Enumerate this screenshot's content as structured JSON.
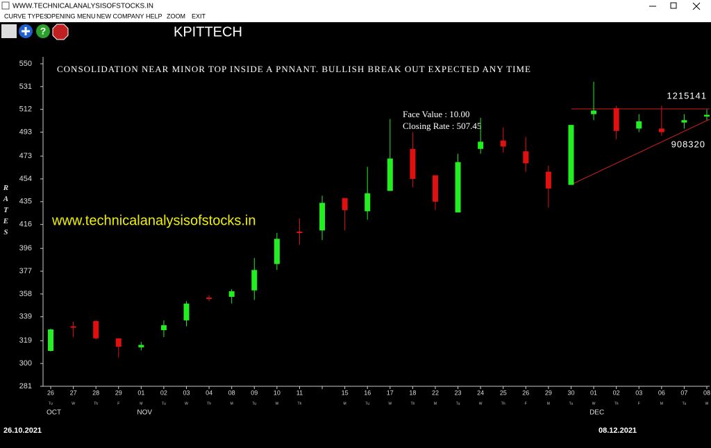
{
  "window": {
    "title": "WWW.TECHNICALANALYSISOFSTOCKS.IN",
    "menu": [
      "CURVE TYPES",
      "OPENING MENU",
      "NEW COMPANY",
      "HELP",
      "ZOOM",
      "EXIT"
    ]
  },
  "chart_data": {
    "type": "candlestick",
    "title": "KPITTECH",
    "annotation": "CONSOLIDATION NEAR MINOR TOP INSIDE A PNNANT. BULLISH BREAK OUT EXPECTED ANY TIME",
    "y_label": "RATES",
    "info": [
      "Face Value     : 10.00",
      "Closing Rate : 507.45"
    ],
    "watermark": "www.technicalanalysisofstocks.in",
    "trend_labels": [
      "1215141",
      "908320"
    ],
    "start_date": "26.10.2021",
    "end_date": "08.12.2021",
    "categories": [
      "26",
      "27",
      "28",
      "29",
      "01",
      "02",
      "03",
      "04",
      "08",
      "09",
      "10",
      "11",
      null,
      "15",
      "16",
      "17",
      "18",
      "22",
      "23",
      "24",
      "25",
      "26",
      "29",
      "30",
      "01",
      "02",
      "03",
      "06",
      "07",
      "08"
    ],
    "weekdays": [
      "Tu",
      "W",
      "Th",
      "F",
      "M",
      "Tu",
      "W",
      "Th",
      "M",
      "Tu",
      "W",
      "Th",
      null,
      "M",
      "Tu",
      "W",
      "Th",
      "M",
      "Tu",
      "W",
      "Th",
      "F",
      "M",
      "Tu",
      "W",
      "Th",
      "F",
      "M",
      "Tu",
      "W"
    ],
    "months": [
      "OCT",
      null,
      null,
      null,
      "NOV",
      null,
      null,
      null,
      null,
      null,
      null,
      null,
      null,
      null,
      null,
      null,
      null,
      null,
      null,
      null,
      null,
      null,
      null,
      null,
      "DEC",
      null,
      null,
      null,
      null,
      null
    ],
    "open": [
      310.5,
      331,
      335.4,
      321,
      313.5,
      327.8,
      336,
      355,
      355.6,
      361,
      383,
      410,
      411,
      438,
      427,
      444,
      479,
      457,
      426,
      479,
      486,
      477,
      460,
      449,
      508,
      513,
      496,
      496,
      501,
      506
    ],
    "high": [
      329,
      335,
      336,
      321,
      318,
      336,
      352,
      357,
      362,
      388,
      409,
      421,
      440,
      438,
      464,
      504,
      493,
      457,
      475,
      505,
      497,
      489,
      465,
      499,
      535,
      515,
      508,
      515,
      508,
      512
    ],
    "low": [
      310,
      322,
      320,
      305,
      311,
      322,
      331,
      352,
      350,
      353,
      378,
      399,
      403,
      411,
      420,
      444,
      447,
      428,
      426,
      475,
      476,
      460,
      430,
      449,
      503,
      487,
      493,
      490,
      496,
      503
    ],
    "close": [
      328.4,
      330,
      321,
      314,
      315.5,
      331.9,
      350,
      354,
      360.3,
      378,
      404,
      409,
      434,
      428,
      442,
      471,
      454,
      435,
      468,
      485,
      481,
      467,
      446,
      499,
      511,
      494,
      502,
      493,
      503,
      507.45
    ],
    "up_color": "#22ee22",
    "down_color": "#e01010",
    "ylim": [
      281,
      550
    ],
    "yticks": [
      281,
      300,
      319,
      339,
      358,
      377,
      396,
      416,
      435,
      454,
      473,
      493,
      512,
      531,
      550
    ]
  }
}
